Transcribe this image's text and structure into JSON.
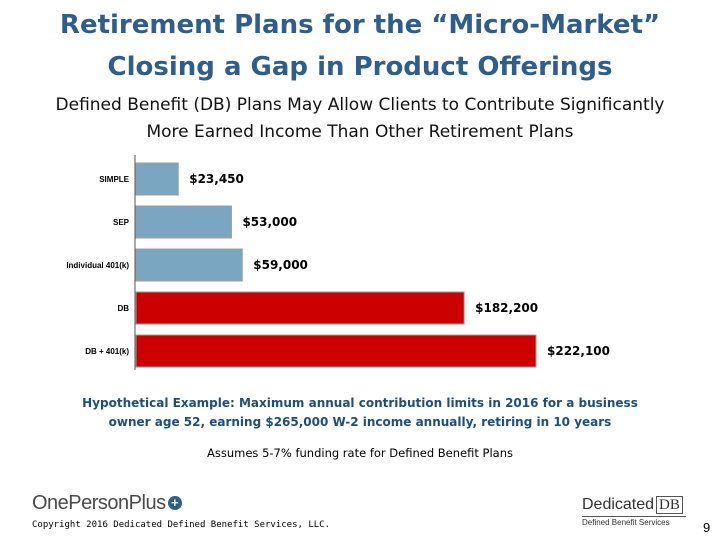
{
  "slide": {
    "title_line1": "Retirement Plans for the “Micro-Market”",
    "title_line2": "Closing a Gap in Product Offerings",
    "subtitle_line1": "Defined Benefit (DB) Plans May Allow Clients to Contribute Significantly",
    "subtitle_line2": "More Earned Income Than Other Retirement Plans",
    "note_line1": "Hypothetical Example: Maximum annual contribution limits in 2016 for a business",
    "note_line2": "owner age 52, earning $265,000 W-2 income annually, retiring in 10 years",
    "assumes": "Assumes 5-7% funding rate for Defined Benefit Plans",
    "copyright": "Copyright 2016 Dedicated Defined Benefit Services, LLC.",
    "page_number": "9"
  },
  "logos": {
    "left_name": "OnePersonPlus",
    "left_symbol": "+",
    "right_name": "Dedicated",
    "right_box": "DB",
    "right_tagline": "Defined Benefit Services"
  },
  "colors": {
    "title": "#2f5d8c",
    "bar_blue": "#7aa6c2",
    "bar_red": "#cc0000",
    "note": "#1f4e79"
  },
  "chart_data": {
    "type": "bar",
    "orientation": "horizontal",
    "categories": [
      "SIMPLE",
      "SEP",
      "Individual 401(k)",
      "DB",
      "DB + 401(k)"
    ],
    "values": [
      23450,
      53000,
      59000,
      182200,
      222100
    ],
    "value_labels": [
      "$23,450",
      "$53,000",
      "$59,000",
      "$182,200",
      "$222,100"
    ],
    "bar_colors": [
      "#7aa6c2",
      "#7aa6c2",
      "#7aa6c2",
      "#cc0000",
      "#cc0000"
    ],
    "title": "",
    "xlabel": "",
    "ylabel": "",
    "xlim": [
      0,
      222100
    ]
  }
}
